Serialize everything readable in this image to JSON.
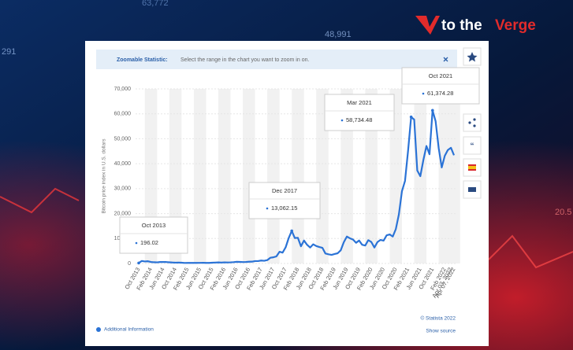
{
  "logo": {
    "prefix": "to the",
    "name": "Verge"
  },
  "background_texts": [
    "63,772",
    "48,991",
    "291",
    "20.5"
  ],
  "header": {
    "label": "Zoomable Statistic:",
    "text": "Select the range in the chart you want to zoom in on."
  },
  "footer": {
    "info": "Additional Information",
    "copyright": "© Statista 2022",
    "source": "Show source"
  },
  "chart_data": {
    "type": "line",
    "y_label": "Bitcoin price index in U.S. dollars",
    "categories": [
      "Oct 2013",
      null,
      null,
      null,
      "Feb 2014",
      null,
      null,
      null,
      "Jun 2014",
      null,
      null,
      null,
      "Oct 2014",
      null,
      null,
      null,
      "Feb 2015",
      null,
      null,
      null,
      "Jun 2015",
      null,
      null,
      null,
      "Oct 2015",
      null,
      null,
      null,
      "Feb 2016",
      null,
      null,
      null,
      "Jun 2016",
      null,
      null,
      null,
      "Oct 2016",
      null,
      null,
      null,
      "Feb 2017",
      null,
      null,
      null,
      "Jun 2017",
      null,
      null,
      null,
      "Oct 2017",
      null,
      null,
      null,
      "Feb 2018",
      null,
      null,
      null,
      "Jun 2018",
      null,
      null,
      null,
      "Oct 2018",
      null,
      null,
      null,
      "Feb 2019",
      null,
      null,
      null,
      "Jun 2019",
      null,
      null,
      null,
      "Oct 2019",
      null,
      null,
      null,
      "Feb 2020",
      null,
      null,
      null,
      "Jun 2020",
      null,
      null,
      null,
      "Oct 2020",
      null,
      null,
      null,
      "Feb 2021",
      null,
      null,
      null,
      "Jun 2021",
      null,
      null,
      null,
      "Oct 2021",
      null,
      null,
      null,
      "Feb 2022",
      null,
      "Apr 03, 2022",
      "Apr 07, 2022"
    ],
    "tooltips": [
      "Oct 2013",
      null,
      null,
      null,
      null,
      null,
      null,
      null,
      null,
      null,
      null,
      null,
      null,
      null,
      null,
      null,
      null,
      null,
      null,
      null,
      null,
      null,
      null,
      null,
      null,
      null,
      null,
      null,
      null,
      null,
      null,
      null,
      null,
      null,
      null,
      null,
      null,
      null,
      null,
      null,
      null,
      null,
      null,
      null,
      null,
      null,
      null,
      null,
      null,
      null,
      "Dec 2017",
      null,
      null,
      null,
      null,
      null,
      null,
      null,
      null,
      null,
      null,
      null,
      null,
      null,
      null,
      null,
      null,
      null,
      null,
      null,
      null,
      null,
      null,
      null,
      null,
      null,
      null,
      null,
      null,
      null,
      null,
      null,
      null,
      null,
      null,
      null,
      null,
      null,
      null,
      "Mar 2021",
      null,
      null,
      null,
      null,
      null,
      null,
      "Oct 2021",
      null,
      null,
      null,
      null,
      null,
      null,
      null
    ],
    "series": [
      {
        "name": "Bitcoin price index",
        "color": "#2b73d6",
        "values": [
          196.02,
          1000,
          800,
          900,
          600,
          500,
          450,
          600,
          600,
          580,
          480,
          390,
          340,
          370,
          320,
          220,
          250,
          245,
          235,
          230,
          260,
          280,
          230,
          235,
          310,
          380,
          430,
          370,
          440,
          415,
          450,
          530,
          670,
          620,
          575,
          610,
          700,
          740,
          960,
          970,
          1190,
          1080,
          1350,
          2300,
          2480,
          2870,
          4700,
          4340,
          6470,
          10200,
          13062.15,
          10200,
          10300,
          6900,
          9200,
          7500,
          6400,
          7700,
          7000,
          6600,
          6300,
          4000,
          3700,
          3450,
          3800,
          4100,
          5300,
          8500,
          10800,
          10100,
          9600,
          8300,
          9200,
          7500,
          7200,
          9350,
          8600,
          6400,
          8600,
          9450,
          9150,
          11300,
          11650,
          10800,
          13800,
          19700,
          29000,
          33100,
          45200,
          58734.48,
          57700,
          37300,
          35000,
          41500,
          47100,
          43800,
          61374.28,
          57000,
          46300,
          38500,
          43200,
          45500,
          46400,
          43400
        ],
        "value_labels": [
          "196.02",
          null,
          null,
          null,
          null,
          null,
          null,
          null,
          null,
          null,
          null,
          null,
          null,
          null,
          null,
          null,
          null,
          null,
          null,
          null,
          null,
          null,
          null,
          null,
          null,
          null,
          null,
          null,
          null,
          null,
          null,
          null,
          null,
          null,
          null,
          null,
          null,
          null,
          null,
          null,
          null,
          null,
          null,
          null,
          null,
          null,
          null,
          null,
          null,
          null,
          "13,062.15",
          null,
          null,
          null,
          null,
          null,
          null,
          null,
          null,
          null,
          null,
          null,
          null,
          null,
          null,
          null,
          null,
          null,
          null,
          null,
          null,
          null,
          null,
          null,
          null,
          null,
          null,
          null,
          null,
          null,
          null,
          null,
          null,
          null,
          null,
          null,
          null,
          null,
          null,
          "58,734.48",
          null,
          null,
          null,
          null,
          null,
          null,
          "61,374.28",
          null,
          null,
          null,
          null,
          null,
          null,
          null
        ]
      }
    ],
    "ylim": [
      0,
      70000
    ],
    "yticks": [
      0,
      {
        "value": 10000,
        "label": "10,000"
      },
      {
        "value": 20000,
        "label": "20,000"
      },
      {
        "value": 30000,
        "label": "30,000"
      },
      {
        "value": 40000,
        "label": "40,000"
      },
      {
        "value": 50000,
        "label": "50,000"
      },
      {
        "value": 60000,
        "label": "60,000"
      },
      {
        "value": 70000,
        "label": "70,000"
      }
    ],
    "grid": true
  }
}
